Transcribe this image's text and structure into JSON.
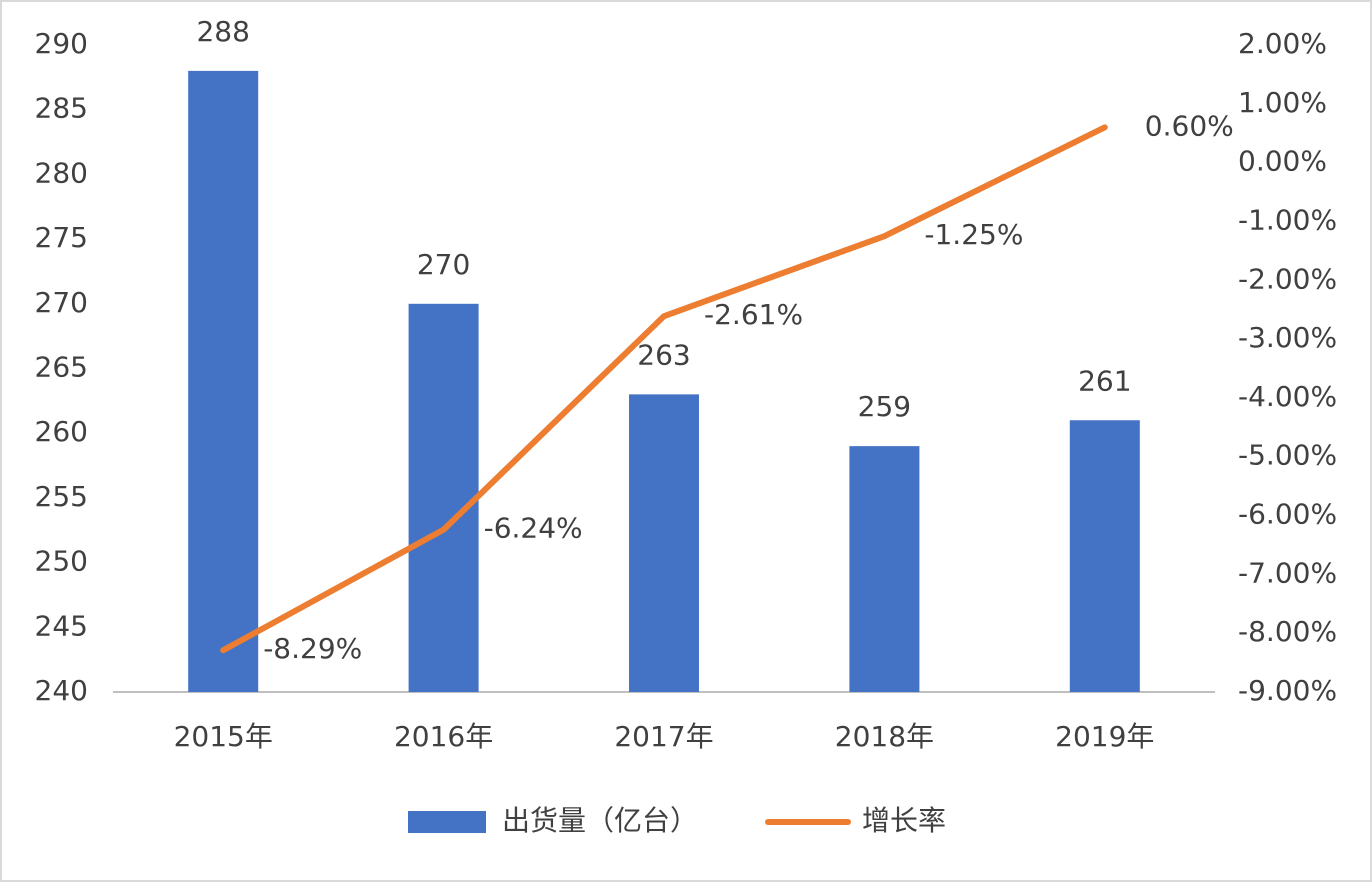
{
  "chart_data": {
    "type": "bar",
    "categories": [
      "2015年",
      "2016年",
      "2017年",
      "2018年",
      "2019年"
    ],
    "series": [
      {
        "name": "出货量（亿台）",
        "type": "bar",
        "color": "#4472C4",
        "values": [
          288,
          270,
          263,
          259,
          261
        ]
      },
      {
        "name": "增长率",
        "type": "line",
        "axis": "y2",
        "color": "#ED7D31",
        "values": [
          -8.29,
          -6.24,
          -2.61,
          -1.25,
          0.6
        ],
        "value_labels": [
          "-8.29%",
          "-6.24%",
          "-2.61%",
          "-1.25%",
          "0.60%"
        ]
      }
    ],
    "ylim": [
      240,
      290
    ],
    "yticks": [
      240,
      245,
      250,
      255,
      260,
      265,
      270,
      275,
      280,
      285,
      290
    ],
    "y2lim": [
      -9,
      2
    ],
    "y2ticks": [
      {
        "value": -9,
        "label": "-9.00%"
      },
      {
        "value": -8,
        "label": "-8.00%"
      },
      {
        "value": -7,
        "label": "-7.00%"
      },
      {
        "value": -6,
        "label": "-6.00%"
      },
      {
        "value": -5,
        "label": "-5.00%"
      },
      {
        "value": -4,
        "label": "-4.00%"
      },
      {
        "value": -3,
        "label": "-3.00%"
      },
      {
        "value": -2,
        "label": "-2.00%"
      },
      {
        "value": -1,
        "label": "-1.00%"
      },
      {
        "value": 0,
        "label": "0.00%"
      },
      {
        "value": 1,
        "label": "1.00%"
      },
      {
        "value": 2,
        "label": "2.00%"
      }
    ],
    "grid": false,
    "legend": "bottom"
  }
}
